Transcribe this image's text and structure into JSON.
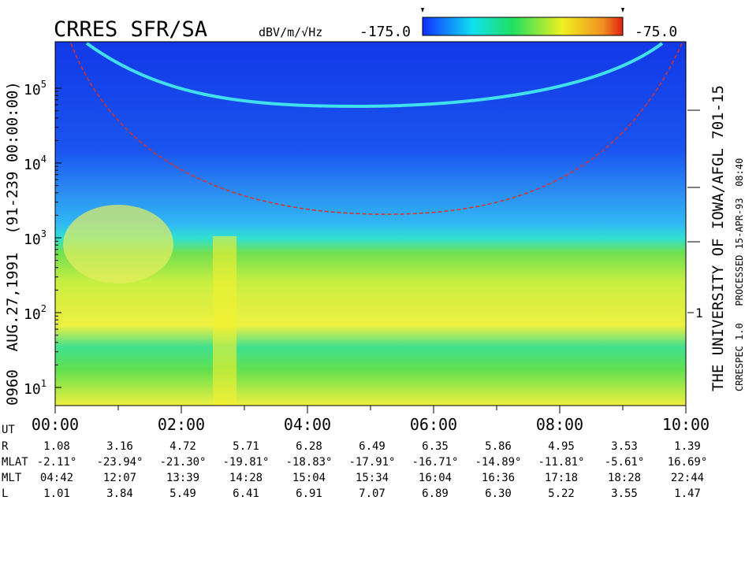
{
  "header": {
    "title": "CRRES SFR/SA",
    "units": "dBV/m/√Hz",
    "colorbar_min": "-175.0",
    "colorbar_max": "-75.0"
  },
  "y_axis": {
    "ticks": [
      {
        "base": "10",
        "exp": "5"
      },
      {
        "base": "10",
        "exp": "4"
      },
      {
        "base": "10",
        "exp": "3"
      },
      {
        "base": "10",
        "exp": "2"
      },
      {
        "base": "10",
        "exp": "1"
      }
    ]
  },
  "right_axis": {
    "ticks": [
      "1"
    ]
  },
  "side_labels": {
    "left": "0960  AUG.27,1991  (91-239 00:00:00)",
    "right": "THE UNIVERSITY OF IOWA/AFGL 701-15",
    "right_small": "CRRESPEC 1.0   PROCESSED 15-APR-93  08:40"
  },
  "x_axis": {
    "label": "UT",
    "ticks": [
      "00:00",
      "02:00",
      "04:00",
      "06:00",
      "08:00",
      "10:00"
    ]
  },
  "ephemeris": {
    "rows": [
      {
        "label": "R",
        "values": [
          "1.08",
          "3.16",
          "4.72",
          "5.71",
          "6.28",
          "6.49",
          "6.35",
          "5.86",
          "4.95",
          "3.53",
          "1.39"
        ]
      },
      {
        "label": "MLAT",
        "values": [
          "-2.11°",
          "-23.94°",
          "-21.30°",
          "-19.81°",
          "-18.83°",
          "-17.91°",
          "-16.71°",
          "-14.89°",
          "-11.81°",
          "-5.61°",
          "16.69°"
        ]
      },
      {
        "label": "MLT",
        "values": [
          "04:42",
          "12:07",
          "13:39",
          "14:28",
          "15:04",
          "15:34",
          "16:04",
          "16:36",
          "17:18",
          "18:28",
          "22:44"
        ]
      },
      {
        "label": "L",
        "values": [
          "1.01",
          "3.84",
          "5.49",
          "6.41",
          "6.91",
          "7.07",
          "6.89",
          "6.30",
          "5.22",
          "3.55",
          "1.47"
        ]
      }
    ]
  }
}
